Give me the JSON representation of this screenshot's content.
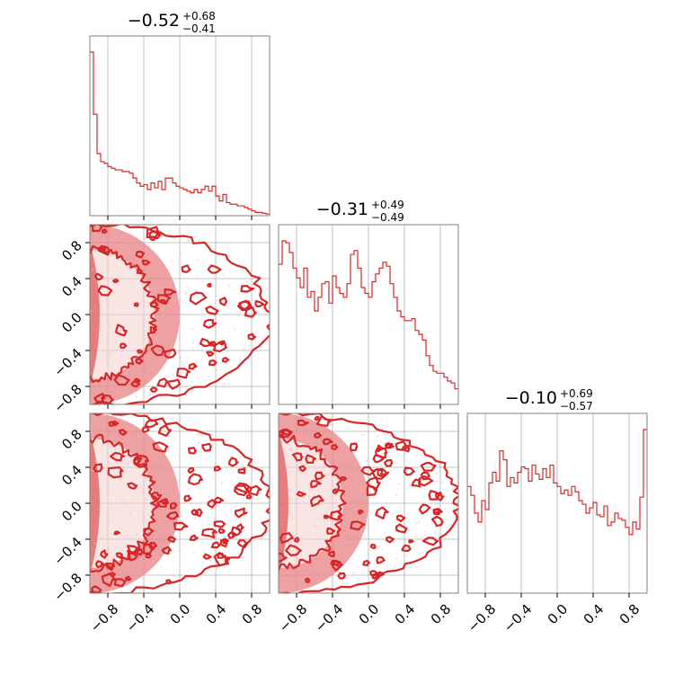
{
  "figure": {
    "color": "#d62728",
    "fill_inner": "#e46a6b",
    "fill_outer": "#f6d0d0"
  },
  "chart_data": {
    "type": "corner",
    "parameters": 3,
    "axis_range": [
      -1.0,
      1.0
    ],
    "ticks": [
      -0.8,
      -0.4,
      0.0,
      0.4,
      0.8
    ],
    "tick_labels": [
      "−0.8",
      "−0.4",
      "0.0",
      "0.4",
      "0.8"
    ],
    "grid": true,
    "titles": [
      {
        "value": "−0.52",
        "upper": "+0.68",
        "lower": "−0.41"
      },
      {
        "value": "−0.31",
        "upper": "+0.49",
        "lower": "−0.49"
      },
      {
        "value": "−0.10",
        "upper": "+0.69",
        "lower": "−0.57"
      }
    ],
    "histograms": [
      {
        "parameter": 1,
        "bins": 50,
        "values": [
          1.0,
          0.62,
          0.38,
          0.33,
          0.32,
          0.3,
          0.29,
          0.28,
          0.28,
          0.27,
          0.27,
          0.26,
          0.23,
          0.2,
          0.18,
          0.19,
          0.16,
          0.2,
          0.17,
          0.21,
          0.16,
          0.23,
          0.23,
          0.2,
          0.18,
          0.17,
          0.16,
          0.15,
          0.14,
          0.16,
          0.14,
          0.16,
          0.18,
          0.15,
          0.18,
          0.12,
          0.09,
          0.13,
          0.08,
          0.07,
          0.07,
          0.06,
          0.06,
          0.05,
          0.04,
          0.03,
          0.02,
          0.02,
          0.015,
          0.01
        ]
      },
      {
        "parameter": 2,
        "bins": 50,
        "values": [
          0.72,
          0.84,
          0.83,
          0.78,
          0.7,
          0.65,
          0.6,
          0.7,
          0.55,
          0.58,
          0.48,
          0.55,
          0.62,
          0.63,
          0.52,
          0.66,
          0.6,
          0.57,
          0.55,
          0.62,
          0.77,
          0.79,
          0.7,
          0.6,
          0.57,
          0.55,
          0.63,
          0.67,
          0.7,
          0.73,
          0.71,
          0.62,
          0.55,
          0.48,
          0.45,
          0.43,
          0.43,
          0.44,
          0.38,
          0.36,
          0.33,
          0.25,
          0.2,
          0.17,
          0.16,
          0.16,
          0.14,
          0.12,
          0.11,
          0.08
        ]
      },
      {
        "parameter": 3,
        "bins": 50,
        "values": [
          0.6,
          0.55,
          0.45,
          0.4,
          0.52,
          0.47,
          0.62,
          0.68,
          0.63,
          0.8,
          0.75,
          0.6,
          0.65,
          0.62,
          0.68,
          0.71,
          0.7,
          0.63,
          0.72,
          0.67,
          0.64,
          0.7,
          0.65,
          0.72,
          0.62,
          0.6,
          0.56,
          0.58,
          0.55,
          0.6,
          0.57,
          0.52,
          0.5,
          0.45,
          0.48,
          0.51,
          0.44,
          0.43,
          0.49,
          0.38,
          0.4,
          0.45,
          0.42,
          0.41,
          0.37,
          0.33,
          0.4,
          0.36,
          0.54,
          0.92
        ]
      }
    ],
    "contours_2d": [
      {
        "row": 2,
        "col": 1,
        "region": "disk-shaped filled density concentrated at x ≈ −1 edge"
      },
      {
        "row": 3,
        "col": 1,
        "region": "disk-shaped filled density concentrated at x ≈ −1 edge"
      },
      {
        "row": 3,
        "col": 2,
        "region": "disk-shaped filled density concentrated at x ≈ −1 edge"
      }
    ]
  }
}
